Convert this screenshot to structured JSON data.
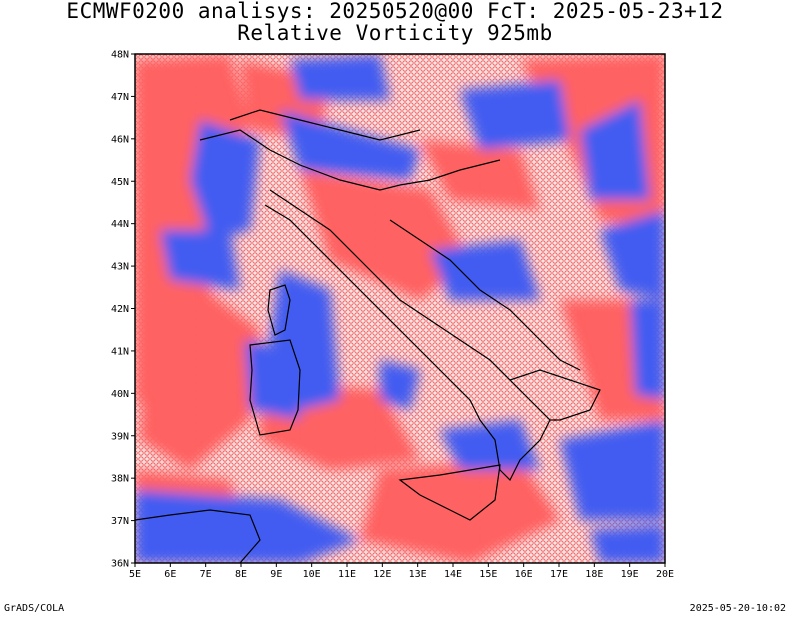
{
  "header": {
    "line1": "ECMWF0200 analisys: 20250520@00 FcT: 2025-05-23+12",
    "line2": "Relative Vorticity 925mb"
  },
  "footer": {
    "left": "GrADS/COLA",
    "right": "2025-05-20-10:02"
  },
  "map": {
    "lon_range": [
      5,
      20
    ],
    "lat_range": [
      36,
      48
    ],
    "x_ticks": [
      "5E",
      "6E",
      "7E",
      "8E",
      "9E",
      "10E",
      "11E",
      "12E",
      "13E",
      "14E",
      "15E",
      "16E",
      "17E",
      "18E",
      "19E",
      "20E"
    ],
    "y_ticks": [
      "36N",
      "37N",
      "38N",
      "39N",
      "40N",
      "41N",
      "42N",
      "43N",
      "44N",
      "45N",
      "46N",
      "47N",
      "48N"
    ],
    "positive_color": "#f03c3c",
    "negative_color": "#2c4ff0",
    "coastline_color": "#000000"
  }
}
